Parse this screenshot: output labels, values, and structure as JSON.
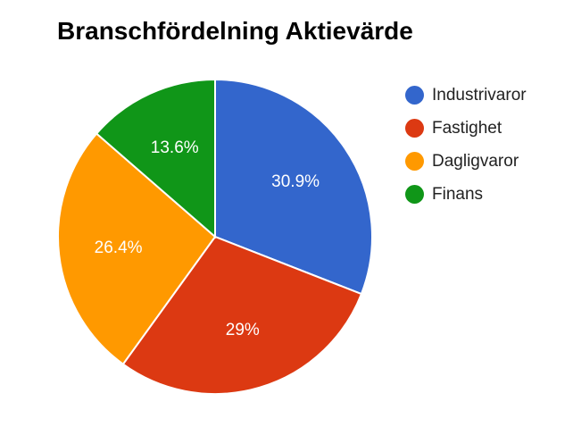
{
  "chart_data": {
    "type": "pie",
    "title": "Branschfördelning Aktievärde",
    "categories": [
      "Industrivaror",
      "Fastighet",
      "Dagligvaror",
      "Finans"
    ],
    "values": [
      30.9,
      29,
      26.4,
      13.6
    ],
    "data_labels": [
      "30.9%",
      "29%",
      "26.4%",
      "13.6%"
    ],
    "colors": [
      "#3366cc",
      "#dc3912",
      "#ff9900",
      "#109618"
    ],
    "legend_position": "right",
    "start_angle": "top, clockwise"
  }
}
